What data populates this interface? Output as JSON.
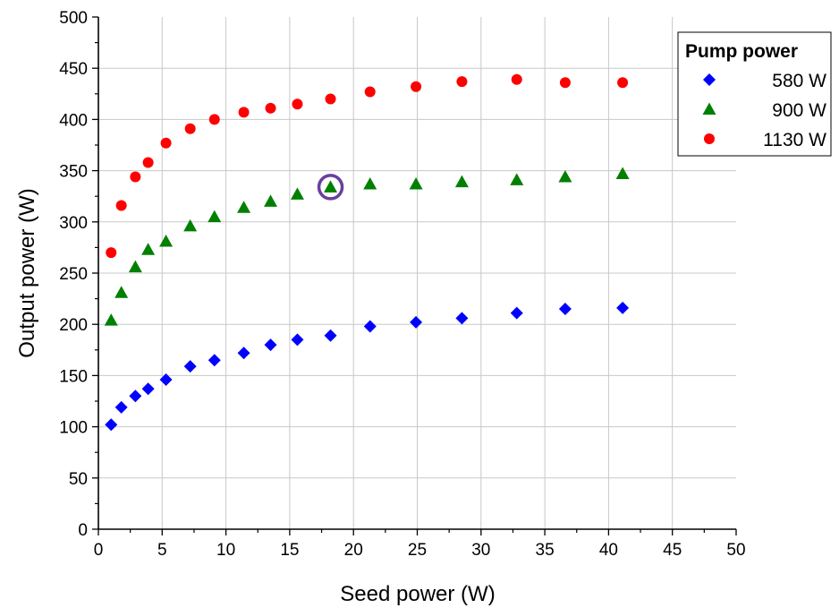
{
  "chart_data": {
    "type": "scatter",
    "xlabel": "Seed power (W)",
    "ylabel": "Output power (W)",
    "xlim": [
      0,
      50
    ],
    "ylim": [
      0,
      500
    ],
    "xticks": [
      0,
      5,
      10,
      15,
      20,
      25,
      30,
      35,
      40,
      45,
      50
    ],
    "yticks": [
      0,
      50,
      100,
      150,
      200,
      250,
      300,
      350,
      400,
      450,
      500
    ],
    "grid": true,
    "legend": {
      "title": "Pump power",
      "placement": "top-right"
    },
    "series": [
      {
        "name": "580 W",
        "marker": "diamond",
        "color": "#0000ff",
        "x": [
          1.0,
          1.8,
          2.9,
          3.9,
          5.3,
          7.2,
          9.1,
          11.4,
          13.5,
          15.6,
          18.2,
          21.3,
          24.9,
          28.5,
          32.8,
          36.6,
          41.1
        ],
        "y": [
          102,
          119,
          130,
          137,
          146,
          159,
          165,
          172,
          180,
          185,
          189,
          198,
          202,
          206,
          211,
          215,
          216
        ]
      },
      {
        "name": "900 W",
        "marker": "triangle",
        "color": "#008000",
        "x": [
          1.0,
          1.8,
          2.9,
          3.9,
          5.3,
          7.2,
          9.1,
          11.4,
          13.5,
          15.6,
          18.2,
          21.3,
          24.9,
          28.5,
          32.8,
          36.6,
          41.1
        ],
        "y": [
          204,
          231,
          256,
          273,
          281,
          296,
          305,
          314,
          320,
          327,
          334,
          337,
          337,
          339,
          341,
          344,
          347
        ]
      },
      {
        "name": "1130 W",
        "marker": "circle",
        "color": "#ff0000",
        "x": [
          1.0,
          1.8,
          2.9,
          3.9,
          5.3,
          7.2,
          9.1,
          11.4,
          13.5,
          15.6,
          18.2,
          21.3,
          24.9,
          28.5,
          32.8,
          36.6,
          41.1
        ],
        "y": [
          270,
          316,
          344,
          358,
          377,
          391,
          400,
          407,
          411,
          415,
          420,
          427,
          432,
          437,
          439,
          436,
          436
        ]
      }
    ],
    "annotations": [
      {
        "type": "circle-highlight",
        "series": "900 W",
        "x": 18.2,
        "y": 334,
        "color": "#6a3fa0"
      }
    ]
  }
}
